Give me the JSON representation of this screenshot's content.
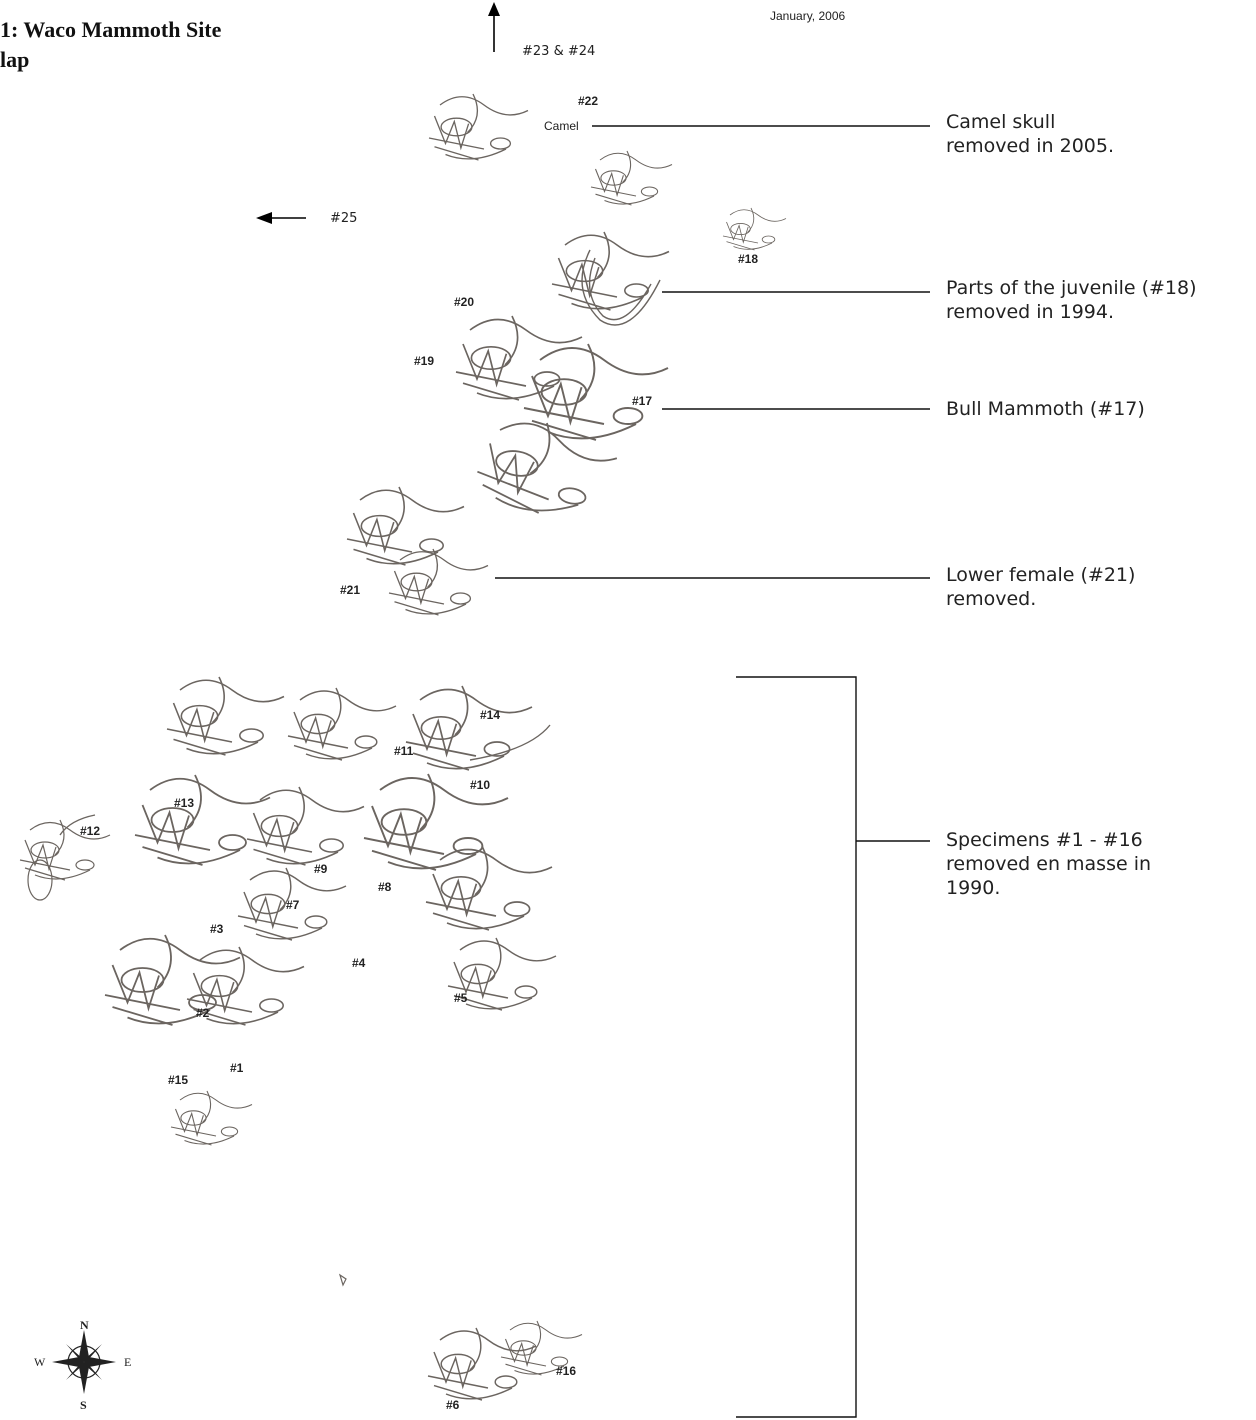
{
  "title": {
    "line1": "1: Waco Mammoth Site",
    "line2": "lap"
  },
  "date": "January, 2006",
  "arrows": {
    "north_label": "#23 & #24",
    "west_label": "#25"
  },
  "map_labels": {
    "camel": "Camel",
    "s22": "#22",
    "s18": "#18",
    "s20": "#20",
    "s19": "#19",
    "s17": "#17",
    "s21": "#21",
    "s14": "#14",
    "s11": "#11",
    "s10": "#10",
    "s13": "#13",
    "s12": "#12",
    "s9": "#9",
    "s8": "#8",
    "s7": "#7",
    "s3": "#3",
    "s4": "#4",
    "s5": "#5",
    "s2": "#2",
    "s15": "#15",
    "s1": "#1",
    "s16": "#16",
    "s6": "#6"
  },
  "annotations": [
    {
      "text": "Camel skull\nremoved in 2005."
    },
    {
      "text": "Parts of the juvenile (#18)\nremoved in 1994."
    },
    {
      "text": "Bull Mammoth (#17)"
    },
    {
      "text": "Lower female (#21)\nremoved."
    },
    {
      "text": "Specimens #1 - #16\nremoved en masse in\n1990."
    }
  ],
  "compass": {
    "n": "N",
    "s": "S",
    "e": "E",
    "w": "W"
  },
  "colors": {
    "bone_line": "#6b6560",
    "leader_line": "#111111"
  }
}
